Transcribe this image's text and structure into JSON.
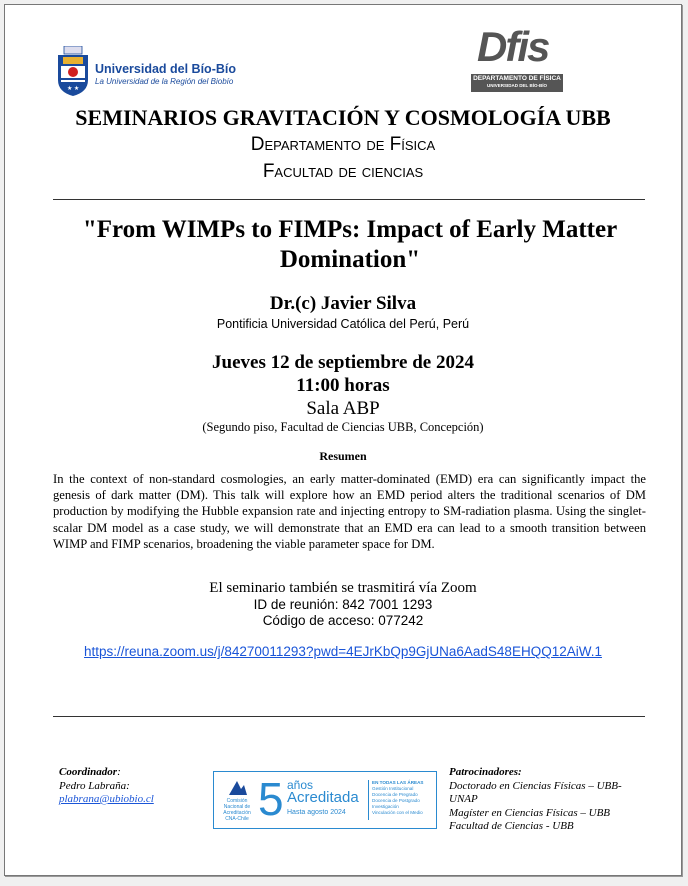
{
  "header": {
    "ubb_logo": {
      "name": "Universidad del Bío-Bío",
      "tagline": "La Universidad de la Región del Biobío",
      "shield_text": "A Ω"
    },
    "dfis_logo": {
      "mark": "Dfis",
      "line1": "DEPARTAMENTO DE FÍSICA",
      "line2": "UNIVERSIDAD DEL BÍO-BÍO"
    },
    "title": "SEMINARIOS GRAVITACIÓN Y COSMOLOGÍA UBB",
    "department": "Departamento de Física",
    "faculty": "Facultad de ciencias"
  },
  "talk": {
    "title": "\"From WIMPs to FIMPs: Impact of Early Matter Domination\"",
    "speaker": "Dr.(c) Javier Silva",
    "affiliation": "Pontificia Universidad Católica del Perú, Perú",
    "date": "Jueves 12 de septiembre de 2024",
    "time": "11:00 horas",
    "room": "Sala ABP",
    "location": "(Segundo piso, Facultad de Ciencias UBB, Concepción)"
  },
  "abstract": {
    "heading": "Resumen",
    "text": "In the context of non-standard cosmologies, an early matter-dominated (EMD) era can significantly impact the genesis of dark matter (DM). This talk will explore how an EMD period alters the traditional scenarios of DM production by modifying the Hubble expansion rate and injecting entropy to SM-radiation plasma. Using the singlet-scalar DM model as a case study, we will demonstrate that an EMD era can lead to a smooth transition between WIMP and FIMP scenarios, broadening the viable parameter space for DM."
  },
  "zoom": {
    "announcement": "El seminario también se trasmitirá vía Zoom",
    "meeting_id": "ID de reunión: 842 7001 1293",
    "passcode": "Código de acceso: 077242",
    "link": "https://reuna.zoom.us/j/84270011293?pwd=4EJrKbQp9GjUNa6AadS48EHQQ12AiW.1"
  },
  "footer": {
    "coordinator_label": "Coordinador",
    "coordinator_name": "Pedro Labraña:",
    "coordinator_email": "plabrana@ubiobio.cl",
    "accreditation": {
      "org": "Comisión Nacional de Acreditación CNA-Chile",
      "years": "5",
      "years_label": "años",
      "status": "Acreditada",
      "until": "Hasta agosto 2024",
      "areas_title": "EN TODAS LAS ÁREAS",
      "areas": [
        "Gestión Institucional",
        "Docencia de Pregrado",
        "Docencia de Postgrado",
        "Investigación",
        "Vinculación con el Medio"
      ]
    },
    "sponsors_label": "Patrocinadores:",
    "sponsors": [
      "Doctorado en Ciencias Físicas – UBB-UNAP",
      "Magíster en Ciencias Físicas – UBB",
      "Facultad de Ciencias - UBB"
    ]
  },
  "colors": {
    "ubb_blue": "#1a4a9c",
    "dfis_teal": "#1f6f8f",
    "accreditation_blue": "#2a8ad0",
    "link": "#1a55d8"
  }
}
